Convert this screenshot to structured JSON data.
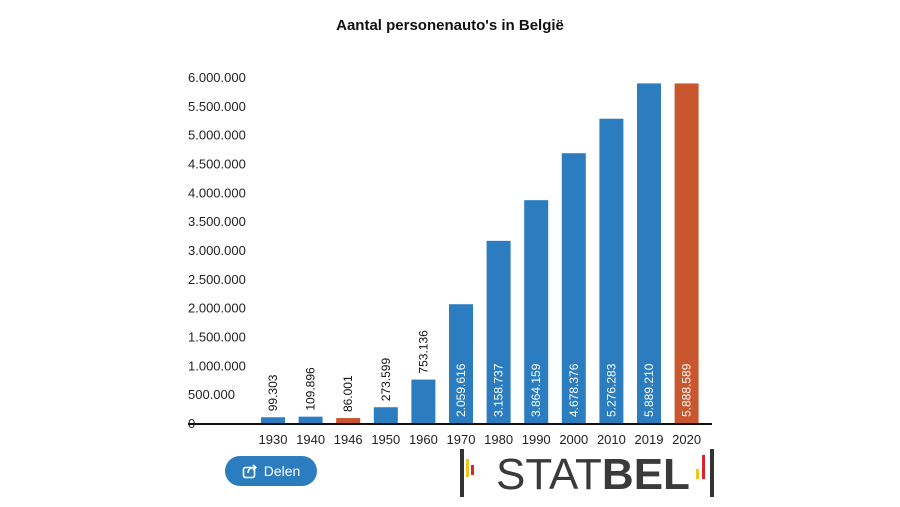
{
  "chart_data": {
    "type": "bar",
    "title": "Aantal personenauto's in België",
    "categories": [
      "1930",
      "1940",
      "1946",
      "1950",
      "1960",
      "1970",
      "1980",
      "1990",
      "2000",
      "2010",
      "2019",
      "2020"
    ],
    "values": [
      99303,
      109896,
      86001,
      273599,
      753136,
      2059616,
      3158737,
      3864159,
      4678376,
      5276283,
      5889210,
      5888589
    ],
    "value_labels": [
      "99.303",
      "109.896",
      "86.001",
      "273.599",
      "753.136",
      "2.059.616",
      "3.158.737",
      "3.864.159",
      "4.678.376",
      "5.276.283",
      "5.889.210",
      "5.888.589"
    ],
    "highlighted": [
      false,
      false,
      true,
      false,
      false,
      false,
      false,
      false,
      false,
      false,
      false,
      true
    ],
    "y_ticks": [
      0,
      500000,
      1000000,
      1500000,
      2000000,
      2500000,
      3000000,
      3500000,
      4000000,
      4500000,
      5000000,
      5500000,
      6000000
    ],
    "y_tick_labels": [
      "0",
      "500.000",
      "1.000.000",
      "1.500.000",
      "2.000.000",
      "2.500.000",
      "3.000.000",
      "3.500.000",
      "4.000.000",
      "4.500.000",
      "5.000.000",
      "5.500.000",
      "6.000.000"
    ],
    "ylim": [
      0,
      6000000
    ],
    "xlabel": "",
    "ylabel": "",
    "grid": false,
    "legend": "none",
    "colors": {
      "default": "#2c7dc0",
      "highlight": "#c8562e"
    }
  },
  "share": {
    "label": "Delen",
    "icon": "share-icon"
  },
  "logo": {
    "text_light": "STAT",
    "text_bold": "BEL",
    "icon": "statbel-logo"
  }
}
